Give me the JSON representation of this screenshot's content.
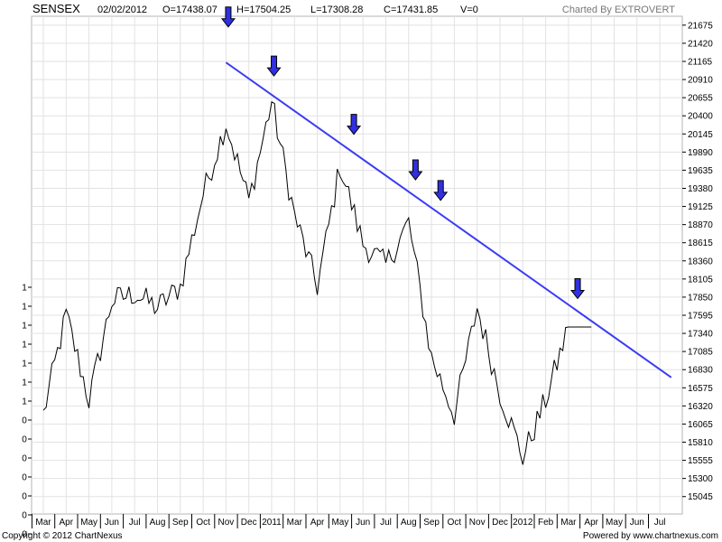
{
  "header": {
    "symbol": "SENSEX",
    "date": "02/02/2012",
    "open": "O=17438.07",
    "high": "H=17504.25",
    "low": "L=17308.28",
    "close": "C=17431.85",
    "volume": "V=0",
    "credit": "Charted By EXTROVERT"
  },
  "footer": {
    "copyright": "Copyright © 2012 ChartNexus",
    "powered": "Powered by www.chartnexus.com"
  },
  "colors": {
    "price": "#000000",
    "trendline": "#3b3bf5",
    "arrow": "#3030e0",
    "grid": "#e2e2e2"
  },
  "chart_data": {
    "type": "line",
    "ylim": [
      14800,
      21800
    ],
    "y_ticks": [
      21675,
      21420,
      21165,
      20910,
      20655,
      20400,
      20145,
      19890,
      19635,
      19380,
      19125,
      18870,
      18615,
      18360,
      18105,
      17850,
      17595,
      17340,
      17085,
      16830,
      16575,
      16320,
      16065,
      15810,
      15555,
      15300,
      15045
    ],
    "left_tick_labels": [
      "1",
      "1",
      "1",
      "1",
      "1",
      "1",
      "1",
      "0",
      "0",
      "0",
      "0",
      "0",
      "0",
      "0"
    ],
    "x_labels": [
      "Mar",
      "Apr",
      "May",
      "Jun",
      "Jul",
      "Aug",
      "Sep",
      "Oct",
      "Nov",
      "Dec",
      "2011",
      "Mar",
      "Apr",
      "May",
      "Jun",
      "Jul",
      "Aug",
      "Sep",
      "Oct",
      "Nov",
      "Dec",
      "2012",
      "Feb",
      "Mar",
      "Apr",
      "May",
      "Jun",
      "Jul"
    ],
    "price_series": {
      "x": [
        0,
        1,
        2,
        3,
        4,
        5,
        6,
        7,
        8,
        9,
        10,
        11,
        12,
        13,
        14,
        15,
        16,
        17,
        18,
        19,
        20,
        21,
        22,
        23,
        24
      ],
      "values": [
        16200,
        17600,
        16400,
        17800,
        17900,
        17700,
        18000,
        19300,
        20300,
        19200,
        20600,
        19000,
        18000,
        19700,
        18600,
        18300,
        18900,
        17000,
        16200,
        17700,
        16500,
        15600,
        16400,
        17430,
        17430
      ]
    },
    "trendline": {
      "start": [
        8.0,
        21150
      ],
      "end": [
        27.5,
        16720
      ]
    },
    "arrows": [
      {
        "x": 8.1,
        "y": 21650
      },
      {
        "x": 10.1,
        "y": 20960
      },
      {
        "x": 13.6,
        "y": 20140
      },
      {
        "x": 16.3,
        "y": 19500
      },
      {
        "x": 17.4,
        "y": 19210
      },
      {
        "x": 23.4,
        "y": 17830
      }
    ]
  }
}
